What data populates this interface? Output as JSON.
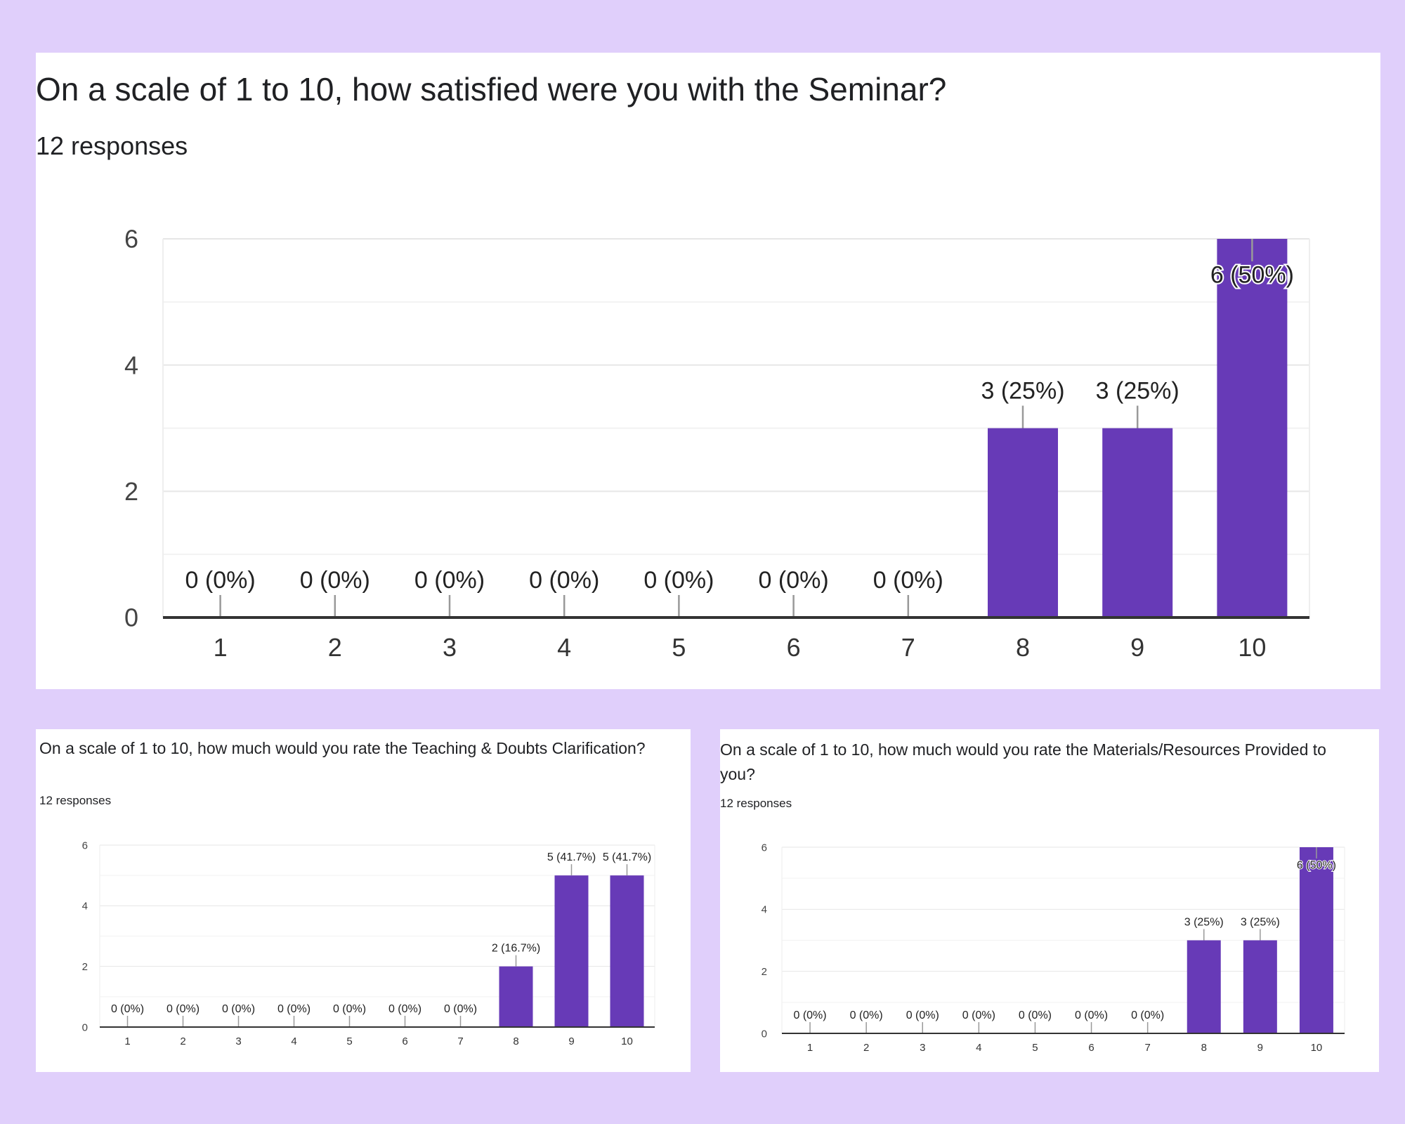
{
  "colors": {
    "background": "#e0cffb",
    "bar": "#673ab7",
    "axis": "#333333",
    "grid": "#ebebeb",
    "text": "#202124",
    "tick_text": "#444444"
  },
  "chart_data": [
    {
      "type": "bar",
      "title": "On a scale of 1 to 10, how satisfied were you with the Seminar?",
      "subtitle": "12 responses",
      "categories": [
        "1",
        "2",
        "3",
        "4",
        "5",
        "6",
        "7",
        "8",
        "9",
        "10"
      ],
      "values": [
        0,
        0,
        0,
        0,
        0,
        0,
        0,
        3,
        3,
        6
      ],
      "data_labels": [
        "0 (0%)",
        "0 (0%)",
        "0 (0%)",
        "0 (0%)",
        "0 (0%)",
        "0 (0%)",
        "0 (0%)",
        "3 (25%)",
        "3 (25%)",
        "6 (50%)"
      ],
      "y_ticks": [
        "0",
        "2",
        "4",
        "6"
      ],
      "ylim": [
        0,
        6
      ],
      "grid": true
    },
    {
      "type": "bar",
      "title": "On a scale of 1 to 10, how much would you rate the Teaching & Doubts Clarification?",
      "subtitle": "12 responses",
      "categories": [
        "1",
        "2",
        "3",
        "4",
        "5",
        "6",
        "7",
        "8",
        "9",
        "10"
      ],
      "values": [
        0,
        0,
        0,
        0,
        0,
        0,
        0,
        2,
        5,
        5
      ],
      "data_labels": [
        "0 (0%)",
        "0 (0%)",
        "0 (0%)",
        "0 (0%)",
        "0 (0%)",
        "0 (0%)",
        "0 (0%)",
        "2 (16.7%)",
        "5 (41.7%)",
        "5 (41.7%)"
      ],
      "y_ticks": [
        "0",
        "2",
        "4",
        "6"
      ],
      "ylim": [
        0,
        6
      ],
      "grid": true
    },
    {
      "type": "bar",
      "title": "On a scale of 1 to 10, how much would you rate the Materials/Resources Provided to you?",
      "subtitle": "12 responses",
      "categories": [
        "1",
        "2",
        "3",
        "4",
        "5",
        "6",
        "7",
        "8",
        "9",
        "10"
      ],
      "values": [
        0,
        0,
        0,
        0,
        0,
        0,
        0,
        3,
        3,
        6
      ],
      "data_labels": [
        "0 (0%)",
        "0 (0%)",
        "0 (0%)",
        "0 (0%)",
        "0 (0%)",
        "0 (0%)",
        "0 (0%)",
        "3 (25%)",
        "3 (25%)",
        "6 (50%)"
      ],
      "y_ticks": [
        "0",
        "2",
        "4",
        "6"
      ],
      "ylim": [
        0,
        6
      ],
      "grid": true
    }
  ]
}
